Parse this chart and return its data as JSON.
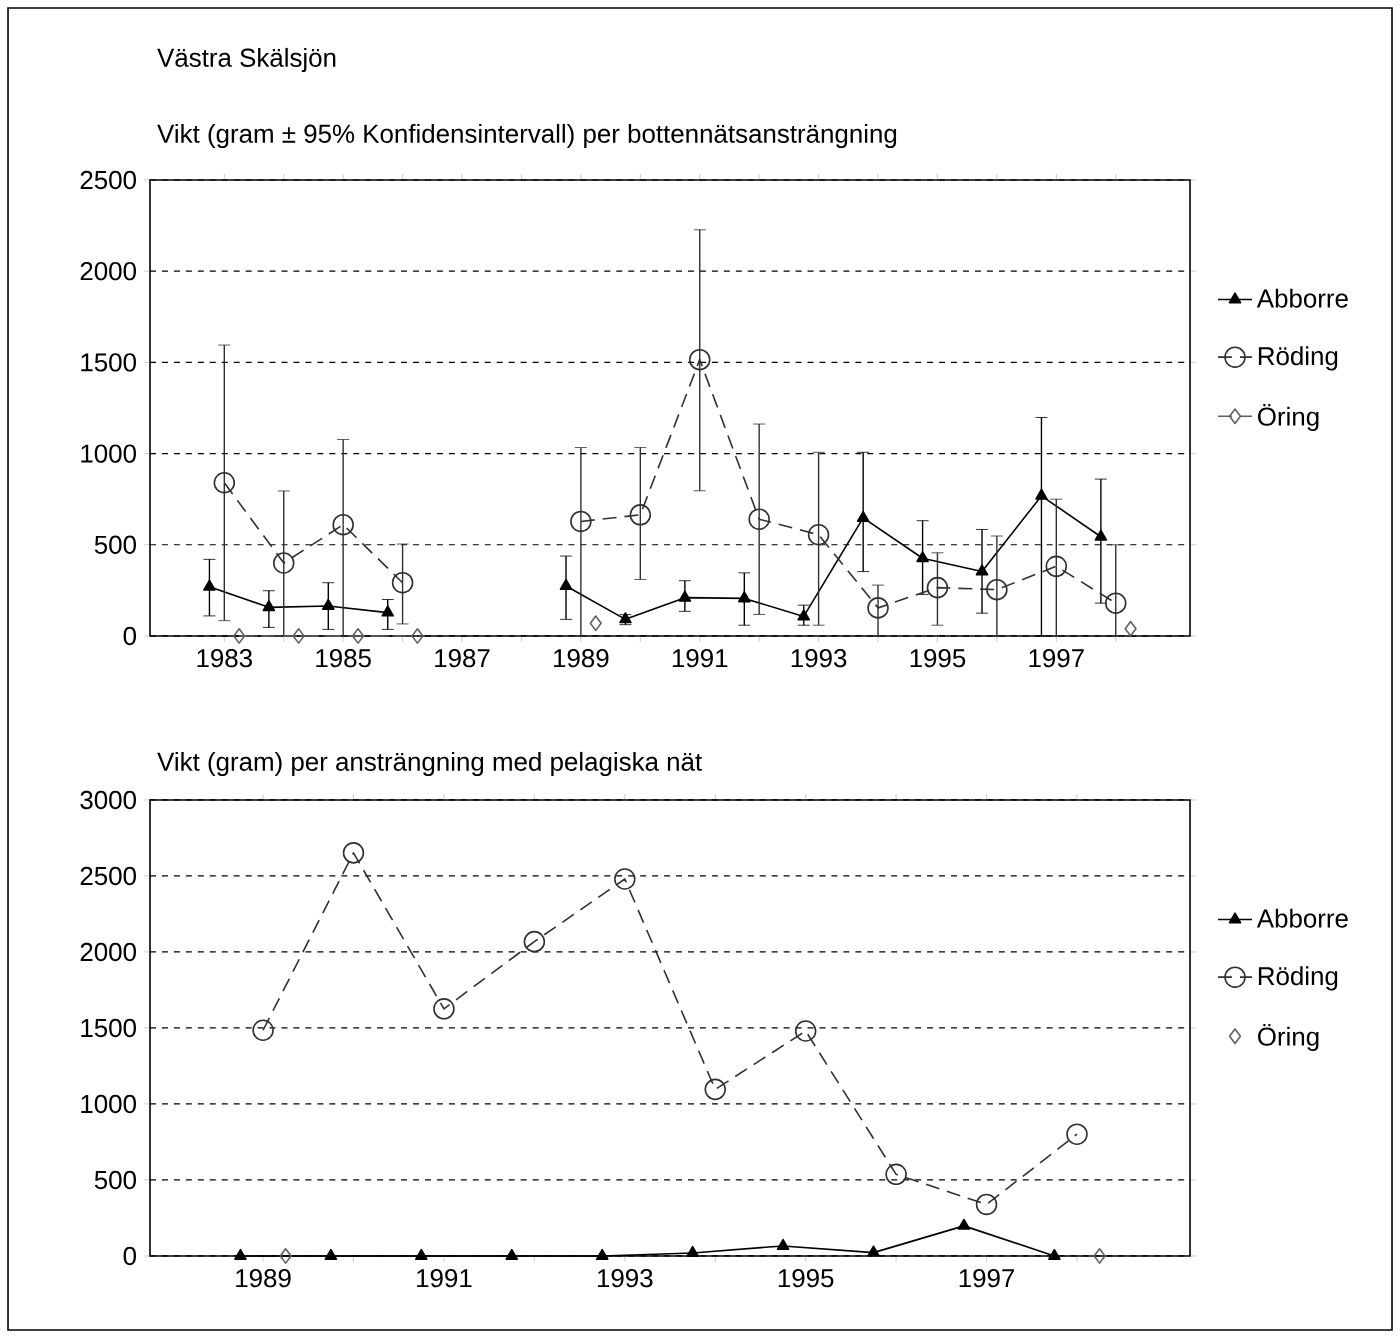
{
  "chart_data": [
    {
      "type": "line",
      "title": "Västra Skälsjön",
      "subtitle": "Vikt (gram ± 95% Konfidensintervall) per bottennätsansträngning",
      "categories": [
        "1983",
        null,
        "1985",
        null,
        "1987",
        null,
        "1989",
        null,
        "1991",
        null,
        "1993",
        null,
        "1995",
        null,
        "1997",
        null
      ],
      "ylim": [
        0,
        2500
      ],
      "yticks": [
        0,
        500,
        1000,
        1500,
        2000,
        2500
      ],
      "grid": "y",
      "legend": "right",
      "series": [
        {
          "name": "Abborre",
          "color": "#000000",
          "marker": "triangle",
          "line_style": "solid",
          "values": [
            270,
            157,
            164,
            128,
            null,
            null,
            274,
            91,
            210,
            206,
            107,
            647,
            426,
            353,
            768,
            544
          ],
          "errors": [
            [
              110,
              420
            ],
            [
              47,
              248
            ],
            [
              36,
              292
            ],
            [
              36,
              200
            ],
            null,
            null,
            [
              91,
              438
            ],
            [
              62,
              117
            ],
            [
              135,
              303
            ],
            [
              59,
              346
            ],
            [
              59,
              169
            ],
            [
              353,
              1007
            ],
            [
              228,
              632
            ],
            [
              125,
              584
            ],
            [
              0,
              1198
            ],
            [
              180,
              860
            ]
          ]
        },
        {
          "name": "Röding",
          "color": "#303030",
          "marker": "circle",
          "line_style": "dashed",
          "values": [
            840,
            400,
            610,
            292,
            null,
            null,
            628,
            664,
            1515,
            640,
            555,
            154,
            265,
            254,
            382,
            180
          ],
          "errors": [
            [
              84,
              1595
            ],
            [
              0,
              795
            ],
            [
              0,
              1077
            ],
            [
              66,
              504
            ],
            null,
            null,
            [
              0,
              1033
            ],
            [
              310,
              1033
            ],
            [
              796,
              2227
            ],
            [
              118,
              1162
            ],
            [
              59,
              1007
            ],
            [
              0,
              279
            ],
            [
              59,
              456
            ],
            [
              0,
              548
            ],
            [
              0,
              750
            ],
            [
              0,
              500
            ]
          ]
        },
        {
          "name": "Öring",
          "color": "#606060",
          "marker": "diamond",
          "line_style": "dashed",
          "values": [
            0,
            0,
            0,
            0,
            null,
            null,
            70,
            null,
            null,
            null,
            null,
            null,
            null,
            null,
            null,
            40
          ]
        }
      ]
    },
    {
      "type": "line",
      "title": "Vikt (gram) per ansträngning med pelagiska nät",
      "categories": [
        "1989",
        null,
        "1991",
        null,
        "1993",
        null,
        "1995",
        null,
        "1997",
        null
      ],
      "ylim": [
        0,
        3000
      ],
      "yticks": [
        0,
        500,
        1000,
        1500,
        2000,
        2500,
        3000
      ],
      "grid": "y",
      "legend": "right",
      "series": [
        {
          "name": "Abborre",
          "color": "#000000",
          "marker": "triangle",
          "line_style": "solid",
          "values": [
            0,
            0,
            0,
            0,
            0,
            20,
            66,
            22,
            198,
            0
          ]
        },
        {
          "name": "Röding",
          "color": "#303030",
          "marker": "circle",
          "line_style": "dashed",
          "values": [
            1485,
            2652,
            1626,
            2068,
            2480,
            1096,
            1480,
            537,
            339,
            801
          ]
        },
        {
          "name": "Öring",
          "type": "scatter",
          "color": "#606060",
          "marker": "diamond",
          "values": [
            0,
            null,
            null,
            null,
            null,
            null,
            null,
            null,
            null,
            0
          ]
        }
      ]
    }
  ]
}
